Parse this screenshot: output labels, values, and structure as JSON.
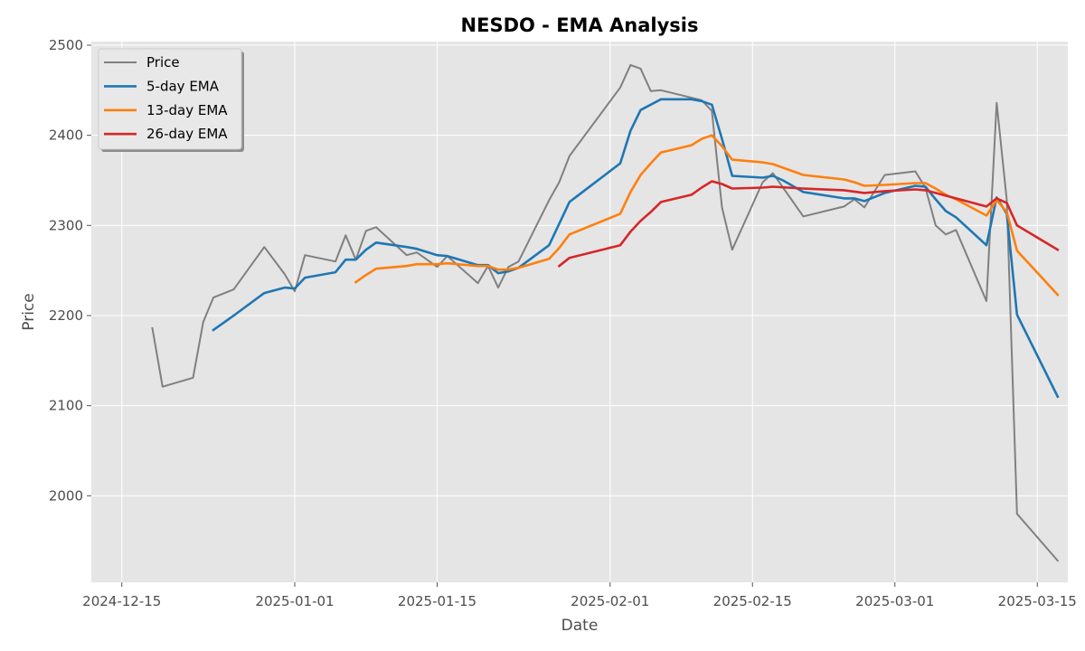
{
  "chart_data": {
    "type": "line",
    "title": "NESDO - EMA Analysis",
    "xlabel": "Date",
    "ylabel": "Price",
    "xlim": [
      "2024-12-12",
      "2025-03-18"
    ],
    "ylim": [
      1904,
      2504
    ],
    "x_ticks": [
      "2024-12-15",
      "2025-01-01",
      "2025-01-15",
      "2025-02-01",
      "2025-02-15",
      "2025-03-01",
      "2025-03-15"
    ],
    "y_ticks": [
      2000,
      2100,
      2200,
      2300,
      2400,
      2500
    ],
    "grid": true,
    "legend_position": "upper left",
    "series": [
      {
        "name": "Price",
        "color": "#808080",
        "points": [
          [
            "2024-12-18",
            2186
          ],
          [
            "2024-12-19",
            2121
          ],
          [
            "2024-12-22",
            2131
          ],
          [
            "2024-12-23",
            2193
          ],
          [
            "2024-12-24",
            2220
          ],
          [
            "2024-12-26",
            2229
          ],
          [
            "2024-12-29",
            2276
          ],
          [
            "2024-12-31",
            2246
          ],
          [
            "2025-01-01",
            2227
          ],
          [
            "2025-01-02",
            2267
          ],
          [
            "2025-01-05",
            2260
          ],
          [
            "2025-01-06",
            2289
          ],
          [
            "2025-01-07",
            2262
          ],
          [
            "2025-01-08",
            2294
          ],
          [
            "2025-01-09",
            2298
          ],
          [
            "2025-01-12",
            2267
          ],
          [
            "2025-01-13",
            2270
          ],
          [
            "2025-01-15",
            2254
          ],
          [
            "2025-01-16",
            2266
          ],
          [
            "2025-01-19",
            2236
          ],
          [
            "2025-01-20",
            2255
          ],
          [
            "2025-01-21",
            2231
          ],
          [
            "2025-01-22",
            2254
          ],
          [
            "2025-01-23",
            2260
          ],
          [
            "2025-01-26",
            2328
          ],
          [
            "2025-01-27",
            2348
          ],
          [
            "2025-01-28",
            2377
          ],
          [
            "2025-02-02",
            2453
          ],
          [
            "2025-02-03",
            2478
          ],
          [
            "2025-02-04",
            2474
          ],
          [
            "2025-02-05",
            2449
          ],
          [
            "2025-02-06",
            2450
          ],
          [
            "2025-02-10",
            2439
          ],
          [
            "2025-02-11",
            2427
          ],
          [
            "2025-02-12",
            2320
          ],
          [
            "2025-02-13",
            2273
          ],
          [
            "2025-02-16",
            2348
          ],
          [
            "2025-02-17",
            2358
          ],
          [
            "2025-02-20",
            2310
          ],
          [
            "2025-02-24",
            2321
          ],
          [
            "2025-02-25",
            2329
          ],
          [
            "2025-02-26",
            2320
          ],
          [
            "2025-02-27",
            2338
          ],
          [
            "2025-02-28",
            2356
          ],
          [
            "2025-03-03",
            2360
          ],
          [
            "2025-03-04",
            2342
          ],
          [
            "2025-03-05",
            2300
          ],
          [
            "2025-03-06",
            2290
          ],
          [
            "2025-03-07",
            2295
          ],
          [
            "2025-03-10",
            2216
          ],
          [
            "2025-03-11",
            2436
          ],
          [
            "2025-03-12",
            2328
          ],
          [
            "2025-03-13",
            1980
          ],
          [
            "2025-03-17",
            1928
          ]
        ]
      },
      {
        "name": "5-day EMA",
        "color": "#1f77b4",
        "points": [
          [
            "2024-12-24",
            2184
          ],
          [
            "2024-12-26",
            2200
          ],
          [
            "2024-12-29",
            2225
          ],
          [
            "2024-12-31",
            2231
          ],
          [
            "2025-01-01",
            2230
          ],
          [
            "2025-01-02",
            2242
          ],
          [
            "2025-01-05",
            2248
          ],
          [
            "2025-01-06",
            2262
          ],
          [
            "2025-01-07",
            2262
          ],
          [
            "2025-01-08",
            2273
          ],
          [
            "2025-01-09",
            2281
          ],
          [
            "2025-01-12",
            2276
          ],
          [
            "2025-01-13",
            2274
          ],
          [
            "2025-01-15",
            2267
          ],
          [
            "2025-01-16",
            2266
          ],
          [
            "2025-01-19",
            2256
          ],
          [
            "2025-01-20",
            2256
          ],
          [
            "2025-01-21",
            2247
          ],
          [
            "2025-01-22",
            2249
          ],
          [
            "2025-01-23",
            2253
          ],
          [
            "2025-01-26",
            2278
          ],
          [
            "2025-01-28",
            2326
          ],
          [
            "2025-02-02",
            2369
          ],
          [
            "2025-02-03",
            2405
          ],
          [
            "2025-02-04",
            2428
          ],
          [
            "2025-02-06",
            2440
          ],
          [
            "2025-02-09",
            2440
          ],
          [
            "2025-02-10",
            2438
          ],
          [
            "2025-02-11",
            2434
          ],
          [
            "2025-02-12",
            2396
          ],
          [
            "2025-02-13",
            2355
          ],
          [
            "2025-02-16",
            2353
          ],
          [
            "2025-02-17",
            2355
          ],
          [
            "2025-02-18",
            2350
          ],
          [
            "2025-02-20",
            2337
          ],
          [
            "2025-02-24",
            2330
          ],
          [
            "2025-02-25",
            2330
          ],
          [
            "2025-02-26",
            2327
          ],
          [
            "2025-02-28",
            2336
          ],
          [
            "2025-03-03",
            2344
          ],
          [
            "2025-03-04",
            2343
          ],
          [
            "2025-03-05",
            2329
          ],
          [
            "2025-03-06",
            2316
          ],
          [
            "2025-03-07",
            2309
          ],
          [
            "2025-03-10",
            2278
          ],
          [
            "2025-03-11",
            2331
          ],
          [
            "2025-03-12",
            2313
          ],
          [
            "2025-03-13",
            2201
          ],
          [
            "2025-03-17",
            2110
          ]
        ]
      },
      {
        "name": "13-day EMA",
        "color": "#ff7f0e",
        "points": [
          [
            "2025-01-07",
            2237
          ],
          [
            "2025-01-08",
            2245
          ],
          [
            "2025-01-09",
            2252
          ],
          [
            "2025-01-12",
            2255
          ],
          [
            "2025-01-13",
            2257
          ],
          [
            "2025-01-15",
            2257
          ],
          [
            "2025-01-16",
            2258
          ],
          [
            "2025-01-19",
            2255
          ],
          [
            "2025-01-20",
            2255
          ],
          [
            "2025-01-21",
            2251
          ],
          [
            "2025-01-22",
            2251
          ],
          [
            "2025-01-23",
            2253
          ],
          [
            "2025-01-26",
            2263
          ],
          [
            "2025-01-27",
            2275
          ],
          [
            "2025-01-28",
            2290
          ],
          [
            "2025-02-02",
            2313
          ],
          [
            "2025-02-03",
            2337
          ],
          [
            "2025-02-04",
            2356
          ],
          [
            "2025-02-05",
            2369
          ],
          [
            "2025-02-06",
            2381
          ],
          [
            "2025-02-09",
            2389
          ],
          [
            "2025-02-10",
            2396
          ],
          [
            "2025-02-11",
            2400
          ],
          [
            "2025-02-12",
            2388
          ],
          [
            "2025-02-13",
            2373
          ],
          [
            "2025-02-16",
            2370
          ],
          [
            "2025-02-17",
            2368
          ],
          [
            "2025-02-20",
            2356
          ],
          [
            "2025-02-24",
            2351
          ],
          [
            "2025-02-25",
            2348
          ],
          [
            "2025-02-26",
            2344
          ],
          [
            "2025-02-28",
            2345
          ],
          [
            "2025-03-03",
            2347
          ],
          [
            "2025-03-04",
            2347
          ],
          [
            "2025-03-05",
            2341
          ],
          [
            "2025-03-06",
            2334
          ],
          [
            "2025-03-07",
            2329
          ],
          [
            "2025-03-10",
            2311
          ],
          [
            "2025-03-11",
            2328
          ],
          [
            "2025-03-12",
            2315
          ],
          [
            "2025-03-13",
            2272
          ],
          [
            "2025-03-17",
            2223
          ]
        ]
      },
      {
        "name": "26-day EMA",
        "color": "#d62728",
        "points": [
          [
            "2025-01-27",
            2255
          ],
          [
            "2025-01-28",
            2264
          ],
          [
            "2025-02-02",
            2278
          ],
          [
            "2025-02-03",
            2293
          ],
          [
            "2025-02-04",
            2305
          ],
          [
            "2025-02-05",
            2315
          ],
          [
            "2025-02-06",
            2326
          ],
          [
            "2025-02-09",
            2334
          ],
          [
            "2025-02-10",
            2342
          ],
          [
            "2025-02-11",
            2349
          ],
          [
            "2025-02-12",
            2346
          ],
          [
            "2025-02-13",
            2341
          ],
          [
            "2025-02-16",
            2342
          ],
          [
            "2025-02-17",
            2343
          ],
          [
            "2025-02-20",
            2341
          ],
          [
            "2025-02-24",
            2339
          ],
          [
            "2025-02-26",
            2336
          ],
          [
            "2025-02-28",
            2338
          ],
          [
            "2025-03-03",
            2340
          ],
          [
            "2025-03-04",
            2339
          ],
          [
            "2025-03-05",
            2336
          ],
          [
            "2025-03-06",
            2333
          ],
          [
            "2025-03-07",
            2330
          ],
          [
            "2025-03-10",
            2321
          ],
          [
            "2025-03-11",
            2330
          ],
          [
            "2025-03-12",
            2325
          ],
          [
            "2025-03-13",
            2300
          ],
          [
            "2025-03-17",
            2273
          ]
        ]
      }
    ]
  }
}
